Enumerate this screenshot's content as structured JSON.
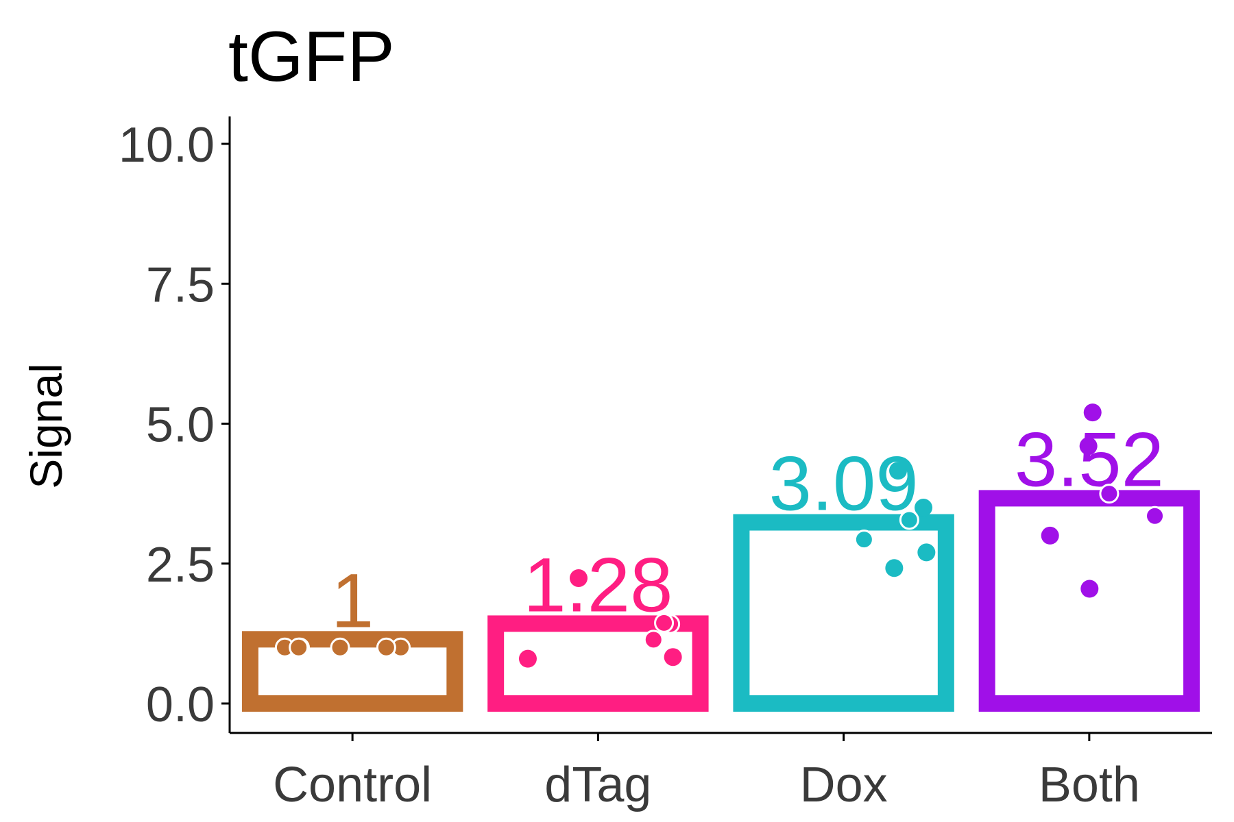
{
  "chart_data": {
    "type": "bar",
    "title": "tGFP",
    "ylabel": "Signal",
    "xlabel": "",
    "categories": [
      "Control",
      "dTag",
      "Dox",
      "Both"
    ],
    "values": [
      1,
      1.28,
      3.09,
      3.52
    ],
    "value_labels": [
      "1",
      "1.28",
      "3.09",
      "3.52"
    ],
    "colors": [
      "#C07030",
      "#FF1E82",
      "#1BBBC3",
      "#A010E8"
    ],
    "ylim": [
      0,
      10
    ],
    "y_ticks": [
      0,
      2.5,
      5,
      7.5,
      10
    ],
    "y_tick_labels": [
      "0.0",
      "2.5",
      "5.0",
      "7.5",
      "10.0"
    ],
    "points": [
      [
        1.0,
        1.0,
        1.0,
        1.0,
        1.0,
        1.0
      ],
      [
        1.42,
        1.14,
        1.44,
        0.8,
        0.83,
        2.24
      ],
      [
        3.28,
        2.93,
        2.7,
        2.42,
        4.16,
        3.5
      ],
      [
        5.2,
        4.6,
        3.75,
        3.35,
        3.0,
        2.05
      ]
    ],
    "grid": false,
    "legend": "none"
  }
}
